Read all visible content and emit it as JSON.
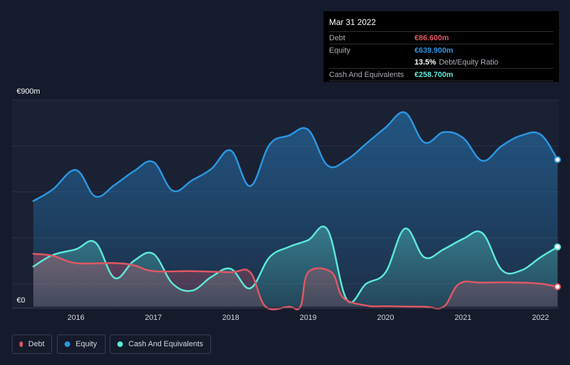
{
  "tooltip": {
    "date": "Mar 31 2022",
    "debt_label": "Debt",
    "debt_value": "€86.600m",
    "equity_label": "Equity",
    "equity_value": "€639.900m",
    "ratio_value": "13.5%",
    "ratio_label": "Debt/Equity Ratio",
    "cash_label": "Cash And Equivalents",
    "cash_value": "€258.700m"
  },
  "legend": {
    "debt": "Debt",
    "equity": "Equity",
    "cash": "Cash And Equivalents"
  },
  "colors": {
    "debt": "#e05763",
    "equity": "#2b96e3",
    "cash": "#5ee8d8",
    "background": "#151b2b"
  },
  "chart_data": {
    "type": "area",
    "y_top_label": "€900m",
    "y_bottom_label": "€0",
    "ylim": [
      0,
      900
    ],
    "xlim": [
      2015.45,
      2022.22
    ],
    "x_tick_labels": [
      "2016",
      "2017",
      "2018",
      "2019",
      "2020",
      "2021",
      "2022"
    ],
    "x_ticks": [
      2016,
      2017,
      2018,
      2019,
      2020,
      2021,
      2022
    ],
    "series": [
      {
        "name": "Equity",
        "points": [
          [
            2015.45,
            460
          ],
          [
            2015.7,
            510
          ],
          [
            2016.0,
            595
          ],
          [
            2016.25,
            480
          ],
          [
            2016.5,
            530
          ],
          [
            2016.75,
            590
          ],
          [
            2017.0,
            630
          ],
          [
            2017.25,
            505
          ],
          [
            2017.5,
            550
          ],
          [
            2017.75,
            600
          ],
          [
            2018.0,
            680
          ],
          [
            2018.25,
            525
          ],
          [
            2018.5,
            705
          ],
          [
            2018.75,
            745
          ],
          [
            2019.0,
            770
          ],
          [
            2019.25,
            615
          ],
          [
            2019.5,
            640
          ],
          [
            2019.75,
            710
          ],
          [
            2020.0,
            780
          ],
          [
            2020.25,
            845
          ],
          [
            2020.5,
            715
          ],
          [
            2020.75,
            760
          ],
          [
            2021.0,
            735
          ],
          [
            2021.25,
            635
          ],
          [
            2021.5,
            700
          ],
          [
            2021.75,
            745
          ],
          [
            2022.0,
            750
          ],
          [
            2022.22,
            640
          ]
        ]
      },
      {
        "name": "Cash And Equivalents",
        "points": [
          [
            2015.45,
            175
          ],
          [
            2015.7,
            225
          ],
          [
            2016.0,
            250
          ],
          [
            2016.25,
            280
          ],
          [
            2016.5,
            125
          ],
          [
            2016.75,
            200
          ],
          [
            2017.0,
            230
          ],
          [
            2017.25,
            100
          ],
          [
            2017.5,
            70
          ],
          [
            2017.75,
            130
          ],
          [
            2018.0,
            165
          ],
          [
            2018.25,
            80
          ],
          [
            2018.5,
            215
          ],
          [
            2018.75,
            260
          ],
          [
            2019.0,
            290
          ],
          [
            2019.25,
            335
          ],
          [
            2019.5,
            30
          ],
          [
            2019.75,
            100
          ],
          [
            2020.0,
            150
          ],
          [
            2020.25,
            340
          ],
          [
            2020.5,
            215
          ],
          [
            2020.75,
            250
          ],
          [
            2021.0,
            295
          ],
          [
            2021.25,
            320
          ],
          [
            2021.5,
            160
          ],
          [
            2021.75,
            158
          ],
          [
            2022.0,
            215
          ],
          [
            2022.22,
            260
          ]
        ]
      },
      {
        "name": "Debt",
        "points": [
          [
            2015.45,
            230
          ],
          [
            2015.7,
            222
          ],
          [
            2016.0,
            190
          ],
          [
            2016.5,
            190
          ],
          [
            2016.75,
            180
          ],
          [
            2017.0,
            155
          ],
          [
            2017.5,
            155
          ],
          [
            2018.0,
            150
          ],
          [
            2018.25,
            150
          ],
          [
            2018.45,
            0
          ],
          [
            2018.75,
            0
          ],
          [
            2018.9,
            0
          ],
          [
            2019.0,
            150
          ],
          [
            2019.3,
            150
          ],
          [
            2019.45,
            40
          ],
          [
            2019.75,
            5
          ],
          [
            2020.0,
            2
          ],
          [
            2020.5,
            0
          ],
          [
            2020.75,
            0
          ],
          [
            2020.95,
            100
          ],
          [
            2021.25,
            105
          ],
          [
            2021.75,
            105
          ],
          [
            2022.0,
            100
          ],
          [
            2022.22,
            87
          ]
        ]
      }
    ]
  }
}
